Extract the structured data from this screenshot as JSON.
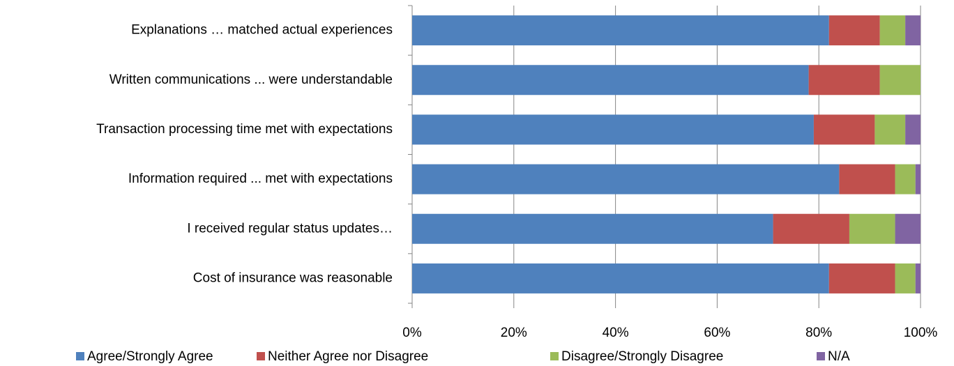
{
  "chart_data": {
    "type": "stacked-bar-horizontal",
    "categories": [
      "Explanations … matched actual experiences",
      "Written communications ... were understandable",
      "Transaction processing time met with expectations",
      "Information required ... met with expectations",
      "I received regular status updates…",
      "Cost of insurance was reasonable"
    ],
    "series": [
      {
        "name": "Agree/Strongly Agree",
        "color": "#4f81bd",
        "values": [
          82,
          78,
          79,
          84,
          71,
          82
        ]
      },
      {
        "name": "Neither Agree nor Disagree",
        "color": "#c0504d",
        "values": [
          10,
          14,
          12,
          11,
          15,
          13
        ]
      },
      {
        "name": "Disagree/Strongly Disagree",
        "color": "#9bbb59",
        "values": [
          5,
          8,
          6,
          4,
          9,
          4
        ]
      },
      {
        "name": "N/A",
        "color": "#8064a2",
        "values": [
          3,
          0,
          3,
          1,
          5,
          1
        ]
      }
    ],
    "xlim": [
      0,
      100
    ],
    "xticks": [
      {
        "value": 0,
        "label": "0%"
      },
      {
        "value": 20,
        "label": "20%"
      },
      {
        "value": 40,
        "label": "40%"
      },
      {
        "value": 60,
        "label": "60%"
      },
      {
        "value": 80,
        "label": "80%"
      },
      {
        "value": 100,
        "label": "100%"
      }
    ],
    "grid": true,
    "legend": "bottom"
  }
}
